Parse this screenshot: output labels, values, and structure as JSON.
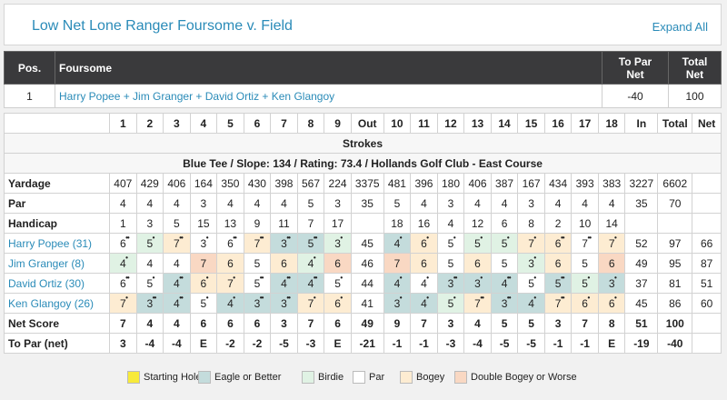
{
  "header": {
    "title": "Low Net Lone Ranger Foursome v. Field",
    "expand_label": "Expand All"
  },
  "foursome_table": {
    "col_pos": "Pos.",
    "col_foursome": "Foursome",
    "col_topar_1": "To Par",
    "col_topar_2": "Net",
    "col_total_1": "Total",
    "col_total_2": "Net",
    "row": {
      "pos": "1",
      "foursome": "Harry Popee + Jim Granger + David Ortiz + Ken Glangoy",
      "to_par": "-40",
      "total": "100"
    }
  },
  "scorecard": {
    "holes": [
      "1",
      "2",
      "3",
      "4",
      "5",
      "6",
      "7",
      "8",
      "9",
      "Out",
      "10",
      "11",
      "12",
      "13",
      "14",
      "15",
      "16",
      "17",
      "18",
      "In",
      "Total",
      "Net"
    ],
    "strokes_label": "Strokes",
    "tee_info": "Blue Tee / Slope: 134 / Rating: 73.4 / Hollands Golf Club - East Course",
    "yardage": {
      "label": "Yardage",
      "values": [
        "407",
        "429",
        "406",
        "164",
        "350",
        "430",
        "398",
        "567",
        "224",
        "3375",
        "481",
        "396",
        "180",
        "406",
        "387",
        "167",
        "434",
        "393",
        "383",
        "3227",
        "6602",
        ""
      ]
    },
    "par": {
      "label": "Par",
      "values": [
        "4",
        "4",
        "4",
        "3",
        "4",
        "4",
        "4",
        "5",
        "3",
        "35",
        "5",
        "4",
        "3",
        "4",
        "4",
        "3",
        "4",
        "4",
        "4",
        "35",
        "70",
        ""
      ]
    },
    "handicap": {
      "label": "Handicap",
      "values": [
        "1",
        "3",
        "5",
        "15",
        "13",
        "9",
        "11",
        "7",
        "17",
        "",
        "18",
        "16",
        "4",
        "12",
        "6",
        "8",
        "2",
        "10",
        "14",
        "",
        "",
        ""
      ]
    },
    "players": [
      {
        "name": "Harry Popee (31)",
        "scores": [
          "6",
          "5",
          "7",
          "3",
          "6",
          "7",
          "3",
          "5",
          "3",
          "45",
          "4",
          "6",
          "5",
          "5",
          "5",
          "7",
          "6",
          "7",
          "7",
          "52",
          "97",
          "66"
        ],
        "dots": [
          "••",
          "•",
          "••",
          "•",
          "••",
          "••",
          "••",
          "••",
          "•",
          "",
          "•",
          "•",
          "•",
          "•",
          "•",
          "•",
          "••",
          "••",
          "•",
          "",
          "",
          ""
        ],
        "types": [
          "p",
          "b",
          "g",
          "p",
          "p",
          "g",
          "e",
          "e",
          "b",
          "",
          "e",
          "g",
          "p",
          "b",
          "b",
          "g",
          "g",
          "p",
          "g",
          "",
          "",
          ""
        ]
      },
      {
        "name": "Jim Granger (8)",
        "scores": [
          "4",
          "4",
          "4",
          "7",
          "6",
          "5",
          "6",
          "4",
          "6",
          "46",
          "7",
          "6",
          "5",
          "6",
          "5",
          "3",
          "6",
          "5",
          "6",
          "49",
          "95",
          "87"
        ],
        "dots": [
          "•",
          "",
          "",
          "",
          "",
          "",
          "",
          "•",
          "",
          "",
          "",
          "",
          "",
          "",
          "",
          "•",
          "",
          "",
          "",
          " ",
          "",
          ""
        ],
        "types": [
          "b",
          "p",
          "p",
          "d",
          "g",
          "p",
          "g",
          "b",
          "d",
          "",
          "d",
          "g",
          "p",
          "g",
          "p",
          "b",
          "g",
          "p",
          "d",
          "",
          "",
          ""
        ]
      },
      {
        "name": "David Ortiz (30)",
        "scores": [
          "6",
          "5",
          "4",
          "6",
          "7",
          "5",
          "4",
          "4",
          "5",
          "44",
          "4",
          "4",
          "3",
          "3",
          "4",
          "5",
          "5",
          "5",
          "3",
          "37",
          "81",
          "51"
        ],
        "dots": [
          "••",
          "•",
          "••",
          "•",
          "•",
          "••",
          "••",
          "••",
          "•",
          "",
          "•",
          "•",
          "••",
          "•",
          "••",
          "•",
          "••",
          "•",
          "•",
          "",
          "",
          ""
        ],
        "types": [
          "p",
          "p",
          "e",
          "g",
          "g",
          "p",
          "e",
          "e",
          "p",
          "",
          "e",
          "p",
          "e",
          "e",
          "e",
          "p",
          "e",
          "b",
          "e",
          "",
          "",
          ""
        ]
      },
      {
        "name": "Ken Glangoy (26)",
        "scores": [
          "7",
          "3",
          "4",
          "5",
          "4",
          "3",
          "3",
          "7",
          "6",
          "41",
          "3",
          "4",
          "5",
          "7",
          "3",
          "4",
          "7",
          "6",
          "6",
          "45",
          "86",
          "60"
        ],
        "dots": [
          "•",
          "••",
          "••",
          "•",
          "•",
          "••",
          "••",
          "•",
          "•",
          "",
          "•",
          "•",
          "•",
          "••",
          "••",
          "•",
          "••",
          "•",
          "•",
          "",
          "",
          ""
        ],
        "types": [
          "g",
          "e",
          "e",
          "p",
          "e",
          "e",
          "e",
          "g",
          "g",
          "",
          "e",
          "e",
          "b",
          "g",
          "e",
          "e",
          "g",
          "g",
          "g",
          "",
          "",
          ""
        ]
      }
    ],
    "net_score": {
      "label": "Net Score",
      "values": [
        "7",
        "4",
        "4",
        "6",
        "6",
        "6",
        "3",
        "7",
        "6",
        "49",
        "9",
        "7",
        "3",
        "4",
        "5",
        "5",
        "3",
        "7",
        "8",
        "51",
        "100",
        ""
      ]
    },
    "to_par_net": {
      "label": "To Par (net)",
      "values": [
        "3",
        "-4",
        "-4",
        "E",
        "-2",
        "-2",
        "-5",
        "-3",
        "E",
        "-21",
        "-1",
        "-1",
        "-3",
        "-4",
        "-5",
        "-5",
        "-1",
        "-1",
        "E",
        "-19",
        "-40",
        ""
      ]
    }
  },
  "legend": [
    {
      "label": "Starting Hole",
      "color": "#f7ea3a"
    },
    {
      "label": "Eagle or Better",
      "color": "#c4dcdc"
    },
    {
      "label": "Birdie",
      "color": "#e0f2e4"
    },
    {
      "label": "Par",
      "color": "#ffffff"
    },
    {
      "label": "Bogey",
      "color": "#fdecd2"
    },
    {
      "label": "Double Bogey or Worse",
      "color": "#f9d8c3"
    }
  ]
}
